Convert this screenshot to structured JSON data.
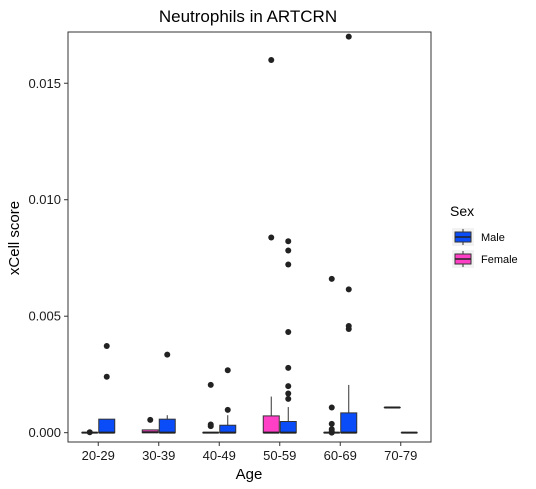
{
  "chart_data": {
    "type": "boxplot",
    "title": "Neutrophils in ARTCRN",
    "xlabel": "Age",
    "ylabel": "xCell score",
    "categories": [
      "20-29",
      "30-39",
      "40-49",
      "50-59",
      "60-69",
      "70-79"
    ],
    "ylim": [
      -0.0004,
      0.0172
    ],
    "yticks": [
      0.0,
      0.005,
      0.01,
      0.015
    ],
    "ytick_labels": [
      "0.000",
      "0.005",
      "0.010",
      "0.015"
    ],
    "grid": false,
    "legend": {
      "title": "Sex",
      "placement": "right",
      "entries": [
        {
          "name": "Male",
          "color": "#0a4cf7"
        },
        {
          "name": "Female",
          "color": "#ff40c6"
        }
      ]
    },
    "series": [
      {
        "name": "Male",
        "color": "#0a4cf7",
        "boxes": [
          {
            "category": "20-29",
            "min": 0.0,
            "q1": 0.0,
            "median": 0.0,
            "q3": 0.00058,
            "max": 0.00058,
            "outliers": [
              0.0024,
              0.00372
            ]
          },
          {
            "category": "30-39",
            "min": 0.0,
            "q1": 0.0,
            "median": 0.0,
            "q3": 0.00058,
            "max": 0.00075,
            "outliers": [
              0.00335
            ]
          },
          {
            "category": "40-49",
            "min": 0.0,
            "q1": 0.0,
            "median": 0.0,
            "q3": 0.00032,
            "max": 0.00075,
            "outliers": [
              0.00098,
              0.00268
            ]
          },
          {
            "category": "50-59",
            "min": 0.0,
            "q1": 0.0,
            "median": 0.0,
            "q3": 0.00048,
            "max": 0.0011,
            "outliers": [
              0.00145,
              0.00168,
              0.002,
              0.00278,
              0.00432,
              0.00722,
              0.00782,
              0.00822
            ]
          },
          {
            "category": "60-69",
            "min": 0.0,
            "q1": 0.0,
            "median": 0.0,
            "q3": 0.00085,
            "max": 0.00205,
            "outliers": [
              0.00445,
              0.00458,
              0.00615,
              0.017
            ]
          },
          {
            "category": "70-79",
            "min": 0.0,
            "q1": 0.0,
            "median": 0.0,
            "q3": 0.0,
            "max": 0.0,
            "outliers": []
          }
        ]
      },
      {
        "name": "Female",
        "color": "#ff40c6",
        "boxes": [
          {
            "category": "20-29",
            "min": 0.0,
            "q1": 0.0,
            "median": 0.0,
            "q3": 0.0,
            "max": 0.0,
            "outliers": [
              2e-05
            ]
          },
          {
            "category": "30-39",
            "min": 0.0,
            "q1": 0.0,
            "median": 2e-05,
            "q3": 0.00012,
            "max": 0.00012,
            "outliers": [
              0.00055
            ]
          },
          {
            "category": "40-49",
            "min": 0.0,
            "q1": 0.0,
            "median": 0.0,
            "q3": 0.0,
            "max": 0.0,
            "outliers": [
              0.00028,
              0.00035,
              0.00205
            ]
          },
          {
            "category": "50-59",
            "min": 0.0,
            "q1": 0.0,
            "median": 0.0,
            "q3": 0.00072,
            "max": 0.00155,
            "outliers": [
              0.00838,
              0.016
            ]
          },
          {
            "category": "60-69",
            "min": 0.0,
            "q1": 0.0,
            "median": 0.0,
            "q3": 0.0,
            "max": 0.0,
            "outliers": [
              0.0,
              5e-05,
              0.00015,
              0.00038,
              0.00108,
              0.0066
            ]
          },
          {
            "category": "70-79",
            "min": 0.00108,
            "q1": 0.00108,
            "median": 0.00108,
            "q3": 0.00108,
            "max": 0.00108,
            "outliers": []
          }
        ]
      }
    ]
  }
}
